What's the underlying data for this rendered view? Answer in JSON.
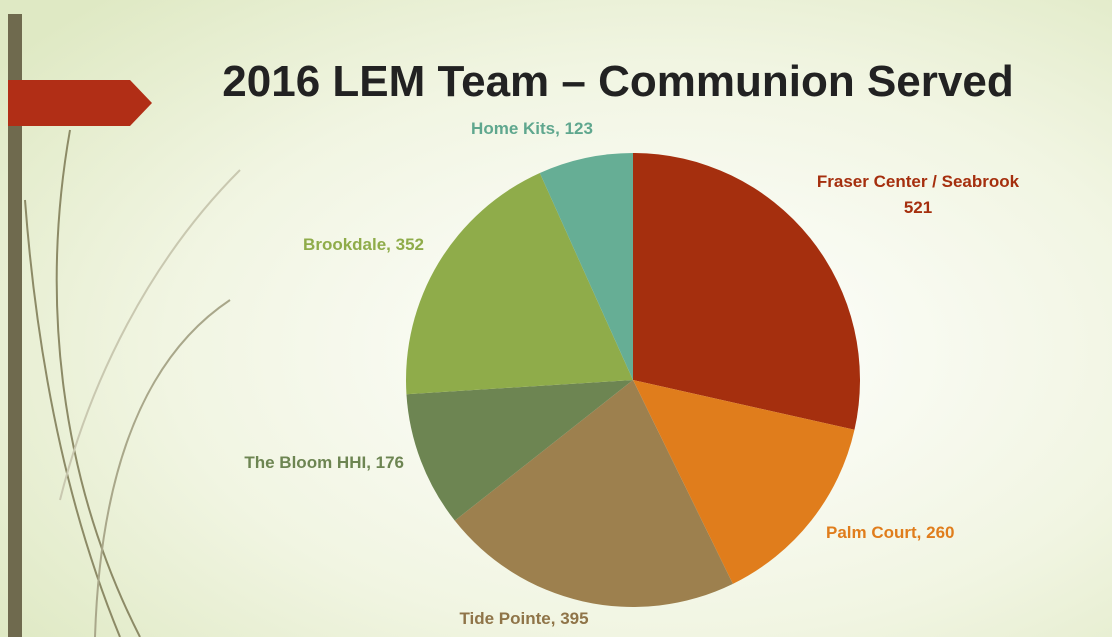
{
  "chart_data": {
    "type": "pie",
    "title": "2016 LEM Team – Communion Served",
    "categories": [
      "Fraser Center / Seabrook",
      "Palm Court",
      "Tide Pointe",
      "The Bloom HHI",
      "Brookdale",
      "Home Kits"
    ],
    "values": [
      521,
      260,
      395,
      176,
      352,
      123
    ],
    "value_labels": [
      "Fraser Center / Seabrook 521",
      "Palm Court, 260",
      "Tide Pointe, 395",
      "The Bloom HHI, 176",
      "Brookdale, 352",
      "Home Kits, 123"
    ],
    "colors": [
      "#a52f0e",
      "#e07d1c",
      "#9d804e",
      "#6d8552",
      "#8fac4a",
      "#66ae95"
    ]
  }
}
